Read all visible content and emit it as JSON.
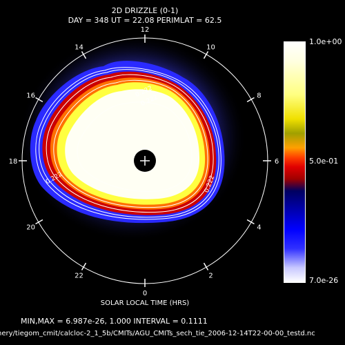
{
  "title": "2D DRIZZLE (0-1)",
  "subtitle": "DAY = 348   UT = 22.08   PERIMLAT =  62.5",
  "xlabel": "SOLAR LOCAL TIME (HRS)",
  "stats_text": "MIN,MAX =  6.987e-26,      1.000  INTERVAL =      0.1111",
  "file_path": "nery/tiegom_cmit/calcloc-2_1_5b/CMITs/AGU_CMITs_sech_tie_2006-12-14T22-00-00_testd.nc",
  "colorbar": {
    "top_label": "1.0e+00",
    "mid_label": "5.0e-01",
    "bottom_label": "7.0e-26"
  },
  "hour_labels": [
    "12",
    "10",
    "8",
    "6",
    "4",
    "2",
    "0",
    "22",
    "20",
    "18",
    "16",
    "14"
  ],
  "contour_labels": [
    "0.222",
    "0.222",
    "0.222",
    "0.222"
  ],
  "colors": {
    "background": "#000000",
    "foreground": "#ffffff"
  },
  "chart_data": {
    "type": "heatmap",
    "projection": "polar (magnetic local time)",
    "title": "2D DRIZZLE (0-1)",
    "day": 348,
    "ut": 22.08,
    "perimlat": 62.5,
    "min": 6.987e-26,
    "max": 1.0,
    "interval": 0.1111,
    "colorbar_range": [
      7e-26,
      1.0
    ],
    "contour_levels": [
      0.1111,
      0.2222,
      0.3333,
      0.4444,
      0.5556,
      0.6667,
      0.7778,
      0.8889
    ],
    "angular_ticks": [
      "0",
      "2",
      "4",
      "6",
      "8",
      "10",
      "12",
      "14",
      "16",
      "18",
      "20",
      "22"
    ],
    "xlabel": "SOLAR LOCAL TIME (HRS)"
  }
}
